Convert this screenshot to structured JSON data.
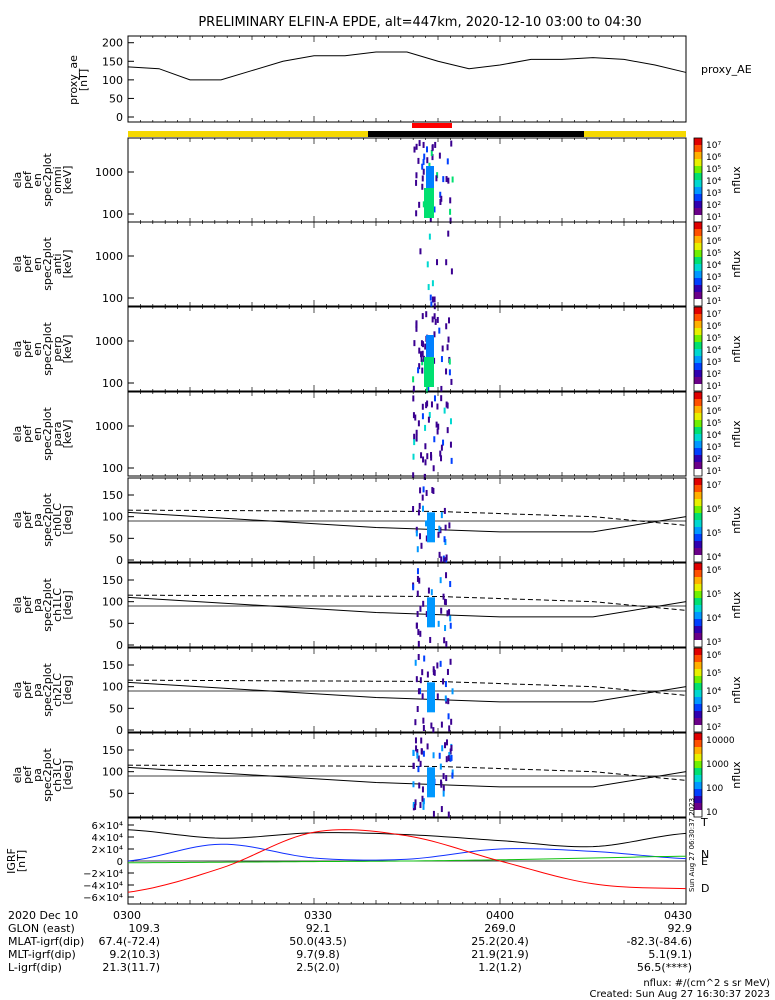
{
  "title": "PRELIMINARY ELFIN-A EPDE, alt=447km, 2020-12-10 03:00 to 04:30",
  "proxy_ae": {
    "ylabel_lines": [
      "proxy_ae",
      "[nT]"
    ],
    "legend": "proxy_AE",
    "yticks": [
      "200",
      "150",
      "100",
      "50",
      "0"
    ]
  },
  "spec_panels": [
    {
      "ylabel_lines": [
        "ela",
        "pef",
        "en",
        "spec2plot",
        "omni",
        "[keV]"
      ],
      "yticks": [
        "1000",
        "100"
      ],
      "cbar_ticks": [
        "10⁷",
        "10⁶",
        "10⁵",
        "10⁴",
        "10³",
        "10²",
        "10¹"
      ],
      "cbar_label": "nflux"
    },
    {
      "ylabel_lines": [
        "ela",
        "pef",
        "en",
        "spec2plot",
        "anti",
        "[keV]"
      ],
      "yticks": [
        "1000",
        "100"
      ],
      "cbar_ticks": [
        "10⁷",
        "10⁶",
        "10⁵",
        "10⁴",
        "10³",
        "10²",
        "10¹"
      ],
      "cbar_label": "nflux"
    },
    {
      "ylabel_lines": [
        "ela",
        "pef",
        "en",
        "spec2plot",
        "perp",
        "[keV]"
      ],
      "yticks": [
        "1000",
        "100"
      ],
      "cbar_ticks": [
        "10⁷",
        "10⁶",
        "10⁵",
        "10⁴",
        "10³",
        "10²",
        "10¹"
      ],
      "cbar_label": "nflux"
    },
    {
      "ylabel_lines": [
        "ela",
        "pef",
        "en",
        "spec2plot",
        "para",
        "[keV]"
      ],
      "yticks": [
        "1000",
        "100"
      ],
      "cbar_ticks": [
        "10⁷",
        "10⁶",
        "10⁵",
        "10⁴",
        "10³",
        "10²",
        "10¹"
      ],
      "cbar_label": "nflux"
    }
  ],
  "pa_panels": [
    {
      "ylabel_lines": [
        "ela",
        "pef",
        "pa",
        "spec2plot",
        "ch0LC",
        "[deg]"
      ],
      "yticks": [
        "150",
        "100",
        "50",
        "0"
      ],
      "cbar_ticks": [
        "10⁷",
        "10⁶",
        "10⁵",
        "10⁴"
      ],
      "cbar_label": "nflux"
    },
    {
      "ylabel_lines": [
        "ela",
        "pef",
        "pa",
        "spec2plot",
        "ch1LC",
        "[deg]"
      ],
      "yticks": [
        "150",
        "100",
        "50",
        "0"
      ],
      "cbar_ticks": [
        "10⁶",
        "10⁵",
        "10⁴",
        "10³"
      ],
      "cbar_label": "nflux"
    },
    {
      "ylabel_lines": [
        "ela",
        "pef",
        "pa",
        "spec2plot",
        "ch2LC",
        "[deg]"
      ],
      "yticks": [
        "150",
        "100",
        "50",
        "0"
      ],
      "cbar_ticks": [
        "10⁶",
        "10⁵",
        "10⁴",
        "10³",
        "10²"
      ],
      "cbar_label": "nflux"
    },
    {
      "ylabel_lines": [
        "ela",
        "pef",
        "pa",
        "spec2plot",
        "ch3LC",
        "[deg]"
      ],
      "yticks": [
        "150",
        "100",
        "50"
      ],
      "cbar_ticks": [
        "10000",
        "1000",
        "100",
        "10"
      ],
      "cbar_label": "nflux"
    }
  ],
  "igrf": {
    "ylabel_lines": [
      "IGRF",
      "[nT]"
    ],
    "yticks": [
      "6×10⁴",
      "4×10⁴",
      "2×10⁴",
      "0",
      "−2×10⁴",
      "−4×10⁴",
      "−6×10⁴"
    ],
    "legend": [
      "T",
      "N",
      "E",
      "D"
    ],
    "side_note": "Sun Aug 27 06:30:37 2023"
  },
  "orbit_table": {
    "rows": [
      [
        "2020 Dec 10",
        "0300",
        "0330",
        "0400",
        "0430"
      ],
      [
        "GLON (east)",
        "109.3",
        "92.1",
        "269.0",
        "92.9"
      ],
      [
        "MLAT-igrf(dip)",
        "67.4(-72.4)",
        "50.0(43.5)",
        "25.2(20.4)",
        "-82.3(-84.6)"
      ],
      [
        "MLT-igrf(dip)",
        "9.2(10.3)",
        "9.7(9.8)",
        "21.9(21.9)",
        "5.1(9.1)"
      ],
      [
        "L-igrf(dip)",
        "21.3(11.7)",
        "2.5(2.0)",
        "1.2(1.2)",
        "56.5(****)"
      ]
    ]
  },
  "footer": {
    "units": "nflux: #/(cm^2 s sr MeV)",
    "created": "Created: Sun Aug 27 16:30:37 2023"
  },
  "colors": {
    "bar_yellow": "#f5d800",
    "bar_black": "#000000",
    "bar_red": "#ff0000",
    "igrf_T": "#000000",
    "igrf_N": "#1030ff",
    "igrf_E": "#10c010",
    "igrf_D": "#ff0000"
  },
  "chart_data": [
    {
      "type": "line",
      "panel": "proxy_ae",
      "x": [
        "03:00",
        "03:05",
        "03:10",
        "03:15",
        "03:20",
        "03:25",
        "03:30",
        "03:35",
        "03:40",
        "03:45",
        "03:50",
        "03:55",
        "04:00",
        "04:05",
        "04:10",
        "04:15",
        "04:20",
        "04:25",
        "04:30"
      ],
      "series": [
        {
          "name": "proxy_AE",
          "values": [
            135,
            130,
            100,
            100,
            125,
            150,
            165,
            165,
            175,
            175,
            150,
            130,
            140,
            155,
            155,
            160,
            155,
            140,
            120
          ]
        }
      ],
      "ylim": [
        0,
        210
      ]
    },
    {
      "type": "line",
      "panel": "igrf",
      "x_minutes": [
        0,
        15,
        30,
        45,
        60,
        75,
        90
      ],
      "series": [
        {
          "name": "T",
          "values": [
            52000,
            38000,
            47000,
            44000,
            34000,
            24000,
            46000
          ]
        },
        {
          "name": "N",
          "values": [
            0,
            28000,
            5000,
            3000,
            20000,
            16000,
            4000
          ]
        },
        {
          "name": "E",
          "values": [
            -3000,
            -2000,
            -1000,
            0,
            2000,
            5000,
            8000
          ]
        },
        {
          "name": "D",
          "values": [
            -52000,
            -12000,
            48000,
            42000,
            0,
            -38000,
            -46000
          ]
        }
      ],
      "ylim": [
        -65000,
        65000
      ]
    }
  ]
}
